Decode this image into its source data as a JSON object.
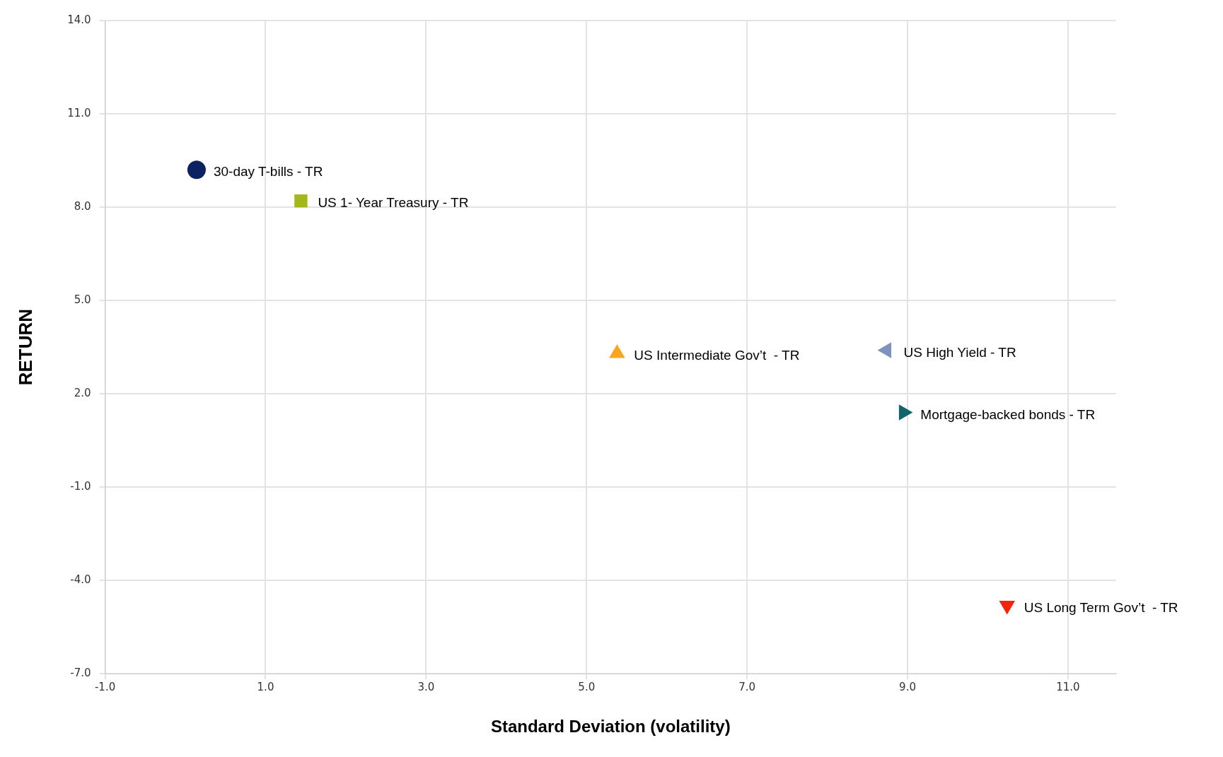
{
  "chart_data": {
    "type": "scatter",
    "xlabel": "Standard Deviation (volatility)",
    "ylabel": "RETURN",
    "xlim": [
      -1,
      11.6
    ],
    "xticks": [
      {
        "value": -1,
        "label": "-1.0"
      },
      {
        "value": 1,
        "label": "1.0"
      },
      {
        "value": 3,
        "label": "3.0"
      },
      {
        "value": 5,
        "label": "5.0"
      },
      {
        "value": 7,
        "label": "7.0"
      },
      {
        "value": 9,
        "label": "9.0"
      },
      {
        "value": 11,
        "label": "11.0"
      }
    ],
    "ylim": [
      -7,
      14
    ],
    "yticks": [
      {
        "value": -7,
        "label": "-7.0"
      },
      {
        "value": -4,
        "label": "-4.0"
      },
      {
        "value": -1,
        "label": "-1.0"
      },
      {
        "value": 2,
        "label": "2.0"
      },
      {
        "value": 5,
        "label": "5.0"
      },
      {
        "value": 8,
        "label": "8.0"
      },
      {
        "value": 11,
        "label": "11.0"
      },
      {
        "value": 14,
        "label": "14.0"
      }
    ],
    "grid": true,
    "legend": false,
    "series": [
      {
        "name": "30-day T-bills - TR",
        "color": "#0d2260",
        "marker": "circle",
        "x": [
          0.14
        ],
        "values": [
          9.2
        ]
      },
      {
        "name": "US 1- Year Treasury - TR",
        "color": "#a4b81c",
        "marker": "square",
        "x": [
          1.44
        ],
        "values": [
          8.2
        ]
      },
      {
        "name": "US Intermediate Gov’t  - TR",
        "color": "#f9a51f",
        "marker": "triangle",
        "x": [
          5.38
        ],
        "values": [
          3.3
        ]
      },
      {
        "name": "US High Yield - TR",
        "color": "#7b93bd",
        "marker": "triangle-left",
        "x": [
          8.74
        ],
        "values": [
          3.4
        ]
      },
      {
        "name": "Mortgage-backed bonds - TR",
        "color": "#11646a",
        "marker": "triangle-right",
        "x": [
          8.95
        ],
        "values": [
          1.4
        ]
      },
      {
        "name": "US Long Term Gov’t  - TR",
        "color": "#f5230c",
        "marker": "triangle-down",
        "x": [
          10.24
        ],
        "values": [
          -4.8
        ]
      }
    ]
  }
}
